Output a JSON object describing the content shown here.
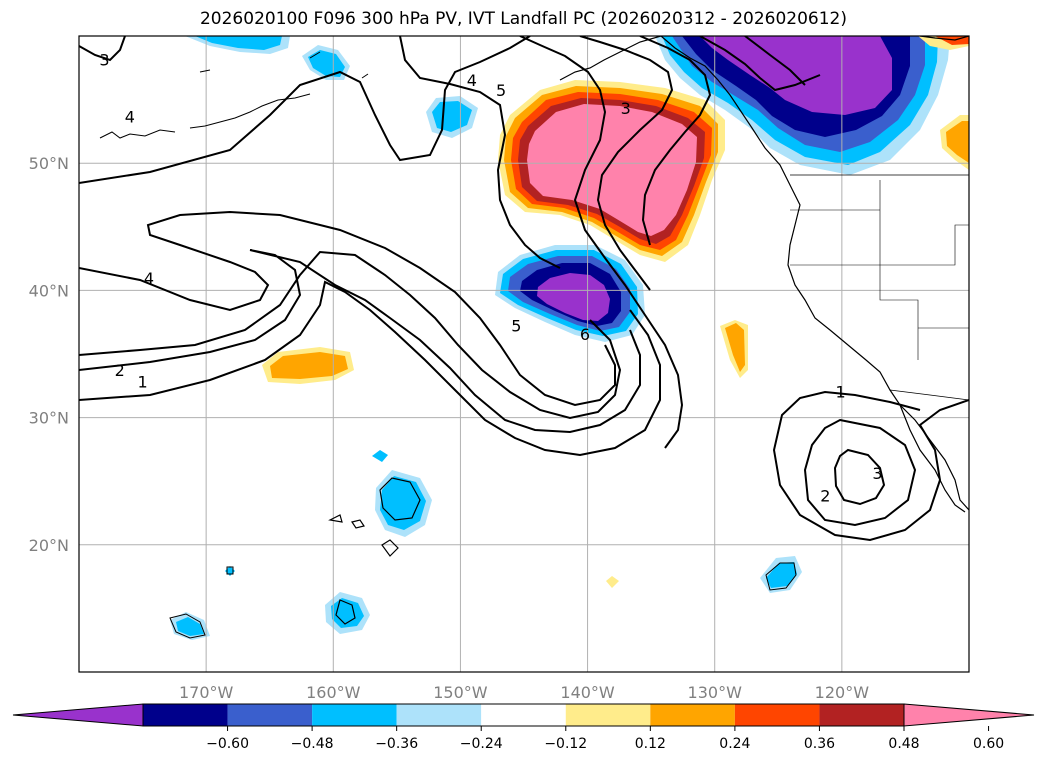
{
  "title": "2026020100 F096 300 hPa PV, IVT Landfall PC (2026020312 - 2026020612)",
  "map": {
    "projection": "cylindrical",
    "lon_range": [
      -180,
      -110
    ],
    "lat_range": [
      10,
      60
    ],
    "lat_labels": [
      {
        "lat": 50,
        "label": "50°N"
      },
      {
        "lat": 40,
        "label": "40°N"
      },
      {
        "lat": 30,
        "label": "30°N"
      },
      {
        "lat": 20,
        "label": "20°N"
      }
    ],
    "lon_labels": [
      {
        "lon": -170,
        "label": "170°W"
      },
      {
        "lon": -160,
        "label": "160°W"
      },
      {
        "lon": -150,
        "label": "150°W"
      },
      {
        "lon": -140,
        "label": "140°W"
      },
      {
        "lon": -130,
        "label": "130°W"
      },
      {
        "lon": -120,
        "label": "120°W"
      }
    ],
    "pv_contour_labels": [
      {
        "value": "3",
        "lon": -178.0,
        "lat": 58.0
      },
      {
        "value": "4",
        "lon": -176.0,
        "lat": 53.5
      },
      {
        "value": "4",
        "lon": -174.5,
        "lat": 40.8
      },
      {
        "value": "2",
        "lon": -176.8,
        "lat": 33.6
      },
      {
        "value": "1",
        "lon": -175.0,
        "lat": 32.7
      },
      {
        "value": "4",
        "lon": -149.1,
        "lat": 56.4
      },
      {
        "value": "5",
        "lon": -146.8,
        "lat": 55.6
      },
      {
        "value": "3",
        "lon": -137.0,
        "lat": 54.2
      },
      {
        "value": "5",
        "lon": -145.6,
        "lat": 37.1
      },
      {
        "value": "6",
        "lon": -140.2,
        "lat": 36.4
      },
      {
        "value": "1",
        "lon": -120.1,
        "lat": 31.9
      },
      {
        "value": "2",
        "lon": -121.3,
        "lat": 23.7
      },
      {
        "value": "3",
        "lon": -117.2,
        "lat": 25.5
      }
    ]
  },
  "colorbar": {
    "ticks": [
      "−0.60",
      "−0.48",
      "−0.36",
      "−0.24",
      "−0.12",
      "0.12",
      "0.24",
      "0.36",
      "0.48",
      "0.60"
    ],
    "bins": [
      {
        "color": "#9932cc"
      },
      {
        "color": "#00008b"
      },
      {
        "color": "#3a5fcd"
      },
      {
        "color": "#00bfff"
      },
      {
        "color": "#ade2fa"
      },
      {
        "color": "#ffffff"
      },
      {
        "color": "#ffec8b"
      },
      {
        "color": "#ffa500"
      },
      {
        "color": "#ff4500"
      },
      {
        "color": "#b22222"
      },
      {
        "color": "#ff82ab"
      }
    ]
  },
  "colors": {
    "grid": "#b0b0b0",
    "contour": "#000000",
    "text_gray": "#808080"
  }
}
